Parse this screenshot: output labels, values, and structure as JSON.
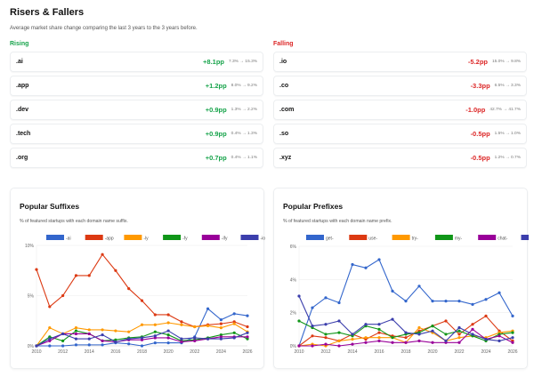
{
  "header": {
    "title": "Risers & Fallers",
    "subtitle": "Average market share change comparing the last 3 years to the 3 years before."
  },
  "rising": {
    "label": "Rising",
    "color": "#16a34a",
    "items": [
      {
        "name": ".ai",
        "delta": "+8.1pp",
        "range": "7.3% → 15.3%"
      },
      {
        "name": ".app",
        "delta": "+1.2pp",
        "range": "8.0% → 9.2%"
      },
      {
        "name": ".dev",
        "delta": "+0.9pp",
        "range": "1.3% → 2.2%"
      },
      {
        "name": ".tech",
        "delta": "+0.9pp",
        "range": "0.4% → 1.3%"
      },
      {
        "name": ".org",
        "delta": "+0.7pp",
        "range": "0.4% → 1.1%"
      }
    ]
  },
  "falling": {
    "label": "Falling",
    "color": "#dc2626",
    "items": [
      {
        "name": ".io",
        "delta": "-5.2pp",
        "range": "15.0% → 9.8%"
      },
      {
        "name": ".co",
        "delta": "-3.3pp",
        "range": "6.5% → 3.3%"
      },
      {
        "name": ".com",
        "delta": "-1.0pp",
        "range": "42.7% → 41.7%"
      },
      {
        "name": ".so",
        "delta": "-0.5pp",
        "range": "1.5% → 1.0%"
      },
      {
        "name": ".xyz",
        "delta": "-0.5pp",
        "range": "1.2% → 0.7%"
      }
    ]
  },
  "chart_data": [
    {
      "type": "line",
      "title": "Popular Suffixes",
      "subtitle": "% of featured startups with each domain name suffix.",
      "x": [
        2010,
        2011,
        2012,
        2013,
        2014,
        2015,
        2016,
        2017,
        2018,
        2019,
        2020,
        2021,
        2022,
        2023,
        2024,
        2025,
        2026
      ],
      "xticks": [
        "2010",
        "2012",
        "2014",
        "2016",
        "2018",
        "2020",
        "2022",
        "2024",
        "2026"
      ],
      "yticks": [
        "0%",
        "5%",
        "10%"
      ],
      "ylim": [
        0,
        10
      ],
      "legend": "top",
      "grid": true,
      "series": [
        {
          "name": "-ai",
          "color": "#3366cc",
          "values": [
            0,
            0,
            0,
            0.1,
            0.1,
            0.1,
            0.3,
            0.2,
            0,
            0.3,
            0.3,
            0.3,
            0.9,
            3.7,
            2.6,
            3.2,
            3.0
          ]
        },
        {
          "name": "-app",
          "color": "#dc3912",
          "values": [
            7.6,
            3.9,
            5.0,
            7.0,
            7.0,
            9.1,
            7.5,
            5.7,
            4.5,
            3.1,
            3.1,
            2.4,
            1.9,
            2.1,
            2.2,
            2.4,
            1.9
          ]
        },
        {
          "name": "-ly",
          "color": "#ff9900",
          "values": [
            0,
            1.8,
            1.2,
            1.8,
            1.6,
            1.6,
            1.5,
            1.4,
            2.1,
            2.1,
            2.3,
            2.1,
            1.9,
            2.0,
            1.8,
            2.2,
            1.4
          ]
        },
        {
          "name": "-fy",
          "color": "#109618",
          "values": [
            0,
            0.9,
            0.5,
            1.5,
            1.2,
            0.5,
            0.6,
            0.8,
            0.9,
            1.4,
            1.1,
            0.5,
            0.6,
            0.8,
            1.1,
            1.3,
            0.7
          ]
        },
        {
          "name": "-ify",
          "color": "#990099",
          "values": [
            0,
            0.5,
            1.2,
            1.2,
            1.2,
            0.5,
            0.4,
            0.6,
            0.6,
            0.8,
            0.8,
            0.4,
            0.5,
            0.7,
            0.9,
            0.9,
            0.9
          ]
        },
        {
          "name": "-io",
          "color": "#3b3eac",
          "values": [
            0,
            0.7,
            1.2,
            0.7,
            0.7,
            1.1,
            0.4,
            0.7,
            0.8,
            1.0,
            1.5,
            0.7,
            0.8,
            0.7,
            0.7,
            0.8,
            1.3
          ]
        }
      ]
    },
    {
      "type": "line",
      "title": "Popular Prefixes",
      "subtitle": "% of featured startups with each domain name prefix.",
      "x": [
        2010,
        2011,
        2012,
        2013,
        2014,
        2015,
        2016,
        2017,
        2018,
        2019,
        2020,
        2021,
        2022,
        2023,
        2024,
        2025,
        2026
      ],
      "xticks": [
        "2010",
        "2012",
        "2014",
        "2016",
        "2018",
        "2020",
        "2022",
        "2024",
        "2026"
      ],
      "yticks": [
        "0%",
        "2%",
        "4%",
        "6%"
      ],
      "ylim": [
        0,
        6
      ],
      "legend": "top",
      "grid": true,
      "series": [
        {
          "name": "get-",
          "color": "#3366cc",
          "values": [
            0,
            2.3,
            2.9,
            2.6,
            4.9,
            4.7,
            5.2,
            3.3,
            2.7,
            3.6,
            2.7,
            2.7,
            2.7,
            2.5,
            2.8,
            3.2,
            1.8
          ]
        },
        {
          "name": "use-",
          "color": "#dc3912",
          "values": [
            0,
            0.6,
            0.5,
            0.3,
            0.7,
            0.4,
            0.8,
            0.6,
            0.5,
            0.9,
            1.2,
            1.5,
            0.7,
            1.3,
            1.8,
            0.9,
            0.3
          ]
        },
        {
          "name": "try-",
          "color": "#ff9900",
          "values": [
            0,
            0.1,
            0,
            0.3,
            0.4,
            0.5,
            0.5,
            0.5,
            0.2,
            1.1,
            0.8,
            0.3,
            0.5,
            0.6,
            0.5,
            0.8,
            0.9
          ]
        },
        {
          "name": "my-",
          "color": "#109618",
          "values": [
            1.5,
            1.1,
            0.7,
            0.8,
            0.6,
            1.2,
            1.0,
            0.5,
            0.7,
            0.8,
            1.2,
            0.7,
            0.9,
            0.6,
            0.3,
            0.7,
            0.8
          ]
        },
        {
          "name": "chat-",
          "color": "#990099",
          "values": [
            0,
            0,
            0.1,
            0,
            0.1,
            0.2,
            0.3,
            0.2,
            0.2,
            0.3,
            0.2,
            0.2,
            0.2,
            1.0,
            0.4,
            0.6,
            0.2
          ]
        },
        {
          "name": "go-",
          "color": "#3b3eac",
          "values": [
            3.0,
            1.2,
            1.3,
            1.5,
            0.7,
            1.3,
            1.3,
            1.6,
            0.8,
            0.7,
            0.9,
            0.3,
            1.1,
            0.7,
            0.4,
            0.3,
            0.5
          ]
        }
      ]
    }
  ]
}
